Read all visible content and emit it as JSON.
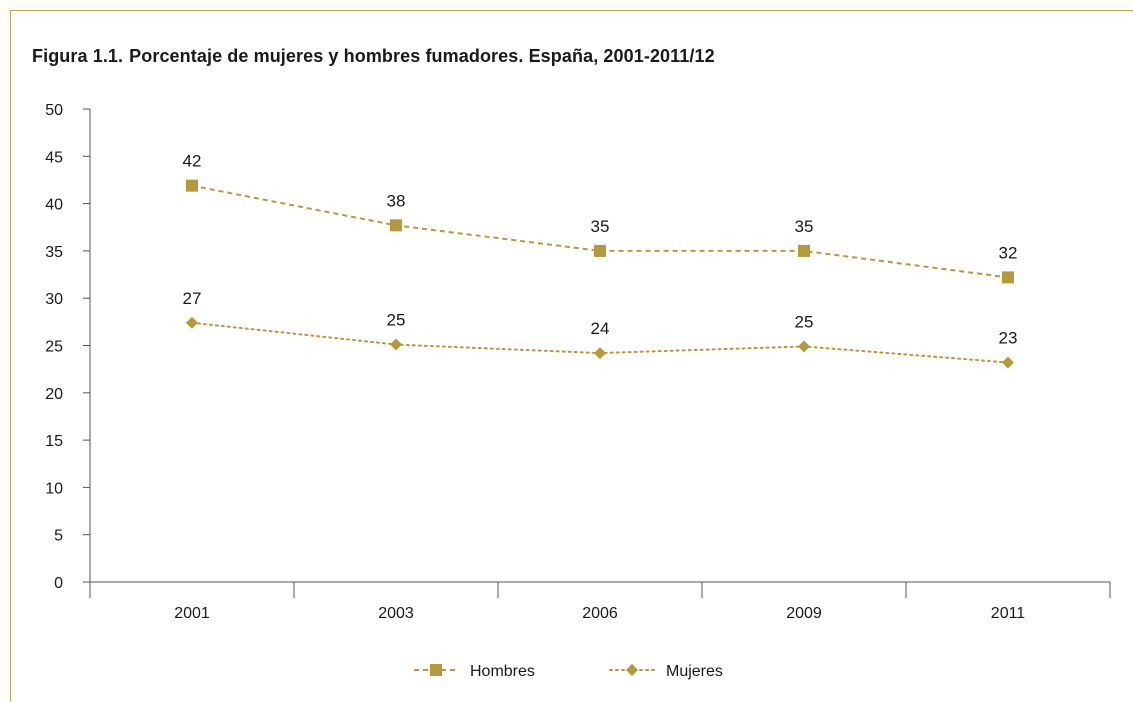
{
  "figure": {
    "label": "Figura 1.1.",
    "title": "Porcentaje de mujeres y hombres fumadores. España, 2001-2011/12"
  },
  "colors": {
    "series": "#b59a3b",
    "frame": "#c2a952",
    "axis": "#555555"
  },
  "chart_data": {
    "type": "line",
    "title": "Porcentaje de mujeres y hombres fumadores. España, 2001-2011/12",
    "categories": [
      "2001",
      "2003",
      "2006",
      "2009",
      "2011"
    ],
    "series": [
      {
        "name": "Hombres",
        "values": [
          42,
          38,
          35,
          35,
          32
        ],
        "marker": "square",
        "line": "dashed"
      },
      {
        "name": "Mujeres",
        "values": [
          27,
          25,
          24,
          25,
          23
        ],
        "marker": "diamond",
        "line": "dotted"
      }
    ],
    "plotted_values": {
      "Hombres": [
        41.9,
        37.7,
        35,
        35,
        32.2
      ],
      "Mujeres": [
        27.4,
        25.1,
        24.2,
        24.9,
        23.2
      ]
    },
    "ylim": [
      0,
      50
    ],
    "yticks": [
      0,
      5,
      10,
      15,
      20,
      25,
      30,
      35,
      40,
      45,
      50
    ],
    "xlabel": "",
    "ylabel": "",
    "grid": false,
    "legend": "bottom-center"
  }
}
